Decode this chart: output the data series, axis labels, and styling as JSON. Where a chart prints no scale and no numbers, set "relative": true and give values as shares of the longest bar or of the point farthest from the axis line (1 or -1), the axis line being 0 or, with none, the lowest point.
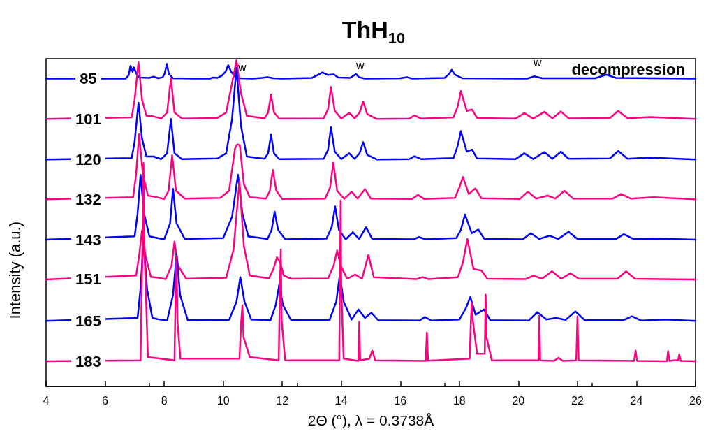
{
  "chart_data": {
    "type": "line",
    "relative": true,
    "title": "ThH$_{10}$",
    "xlabel": "2Θ (°), λ = 0.3738Å",
    "ylabel": "Intensity (a.u.)",
    "annotations": [
      "decompression",
      "w",
      "w",
      "w"
    ],
    "xlim": [
      4,
      26
    ],
    "xticks": [
      4,
      6,
      8,
      10,
      12,
      14,
      16,
      18,
      20,
      22,
      24,
      26
    ],
    "grid": false,
    "legend": false,
    "marker": "none",
    "line_style": "solid",
    "series": [
      {
        "name": "85",
        "color": "#0000ff",
        "x": [
          4,
          6.7,
          6.8,
          6.86,
          6.93,
          6.98,
          7.05,
          7.15,
          7.5,
          7.64,
          7.8,
          7.95,
          8.02,
          8.09,
          8.16,
          8.3,
          9.0,
          9.55,
          9.65,
          9.8,
          9.95,
          10.08,
          10.17,
          10.27,
          10.4,
          10.6,
          11.0,
          11.3,
          11.5,
          11.7,
          12.0,
          13.0,
          13.2,
          13.36,
          13.55,
          13.75,
          13.9,
          14.3,
          14.4,
          14.5,
          14.6,
          14.8,
          16.0,
          16.23,
          16.4,
          17.5,
          17.65,
          17.74,
          17.85,
          18.1,
          20.3,
          20.54,
          20.8,
          22.6,
          22.98,
          23.3,
          26
        ],
        "values": [
          0.944,
          0.944,
          0.955,
          0.983,
          0.965,
          0.978,
          0.96,
          0.947,
          0.946,
          0.95,
          0.945,
          0.948,
          0.96,
          0.989,
          0.958,
          0.945,
          0.944,
          0.944,
          0.947,
          0.946,
          0.953,
          0.965,
          0.985,
          0.965,
          0.95,
          0.945,
          0.944,
          0.946,
          0.948,
          0.945,
          0.944,
          0.946,
          0.955,
          0.963,
          0.955,
          0.957,
          0.947,
          0.946,
          0.952,
          0.958,
          0.948,
          0.944,
          0.945,
          0.948,
          0.944,
          0.946,
          0.958,
          0.971,
          0.956,
          0.945,
          0.944,
          0.951,
          0.945,
          0.945,
          0.956,
          0.946,
          0.944
        ]
      },
      {
        "name": "101",
        "color": "#ff0080",
        "x": [
          4,
          6.9,
          7.0,
          7.13,
          7.25,
          7.4,
          7.64,
          7.9,
          8.1,
          8.23,
          8.35,
          8.6,
          9.8,
          10.1,
          10.3,
          10.45,
          10.6,
          10.8,
          11.4,
          11.52,
          11.62,
          11.72,
          11.9,
          13.4,
          13.55,
          13.65,
          13.78,
          14.0,
          14.27,
          14.45,
          14.62,
          14.74,
          14.88,
          15.2,
          16.3,
          16.48,
          16.7,
          17.8,
          17.95,
          18.05,
          18.25,
          18.43,
          18.6,
          19.9,
          20.2,
          20.5,
          20.88,
          21.15,
          21.44,
          21.7,
          23.1,
          23.38,
          23.7,
          24.44,
          26
        ],
        "values": [
          0.82,
          0.825,
          0.88,
          0.994,
          0.88,
          0.83,
          0.828,
          0.821,
          0.84,
          0.945,
          0.84,
          0.821,
          0.823,
          0.84,
          0.93,
          1.0,
          0.9,
          0.83,
          0.822,
          0.84,
          0.895,
          0.84,
          0.821,
          0.822,
          0.85,
          0.918,
          0.845,
          0.821,
          0.839,
          0.822,
          0.84,
          0.874,
          0.835,
          0.82,
          0.821,
          0.831,
          0.821,
          0.825,
          0.86,
          0.906,
          0.845,
          0.849,
          0.823,
          0.821,
          0.838,
          0.821,
          0.842,
          0.822,
          0.843,
          0.822,
          0.823,
          0.845,
          0.822,
          0.826,
          0.82
        ]
      },
      {
        "name": "120",
        "color": "#0000ff",
        "x": [
          4,
          6.9,
          7.0,
          7.13,
          7.25,
          7.4,
          7.64,
          7.9,
          8.1,
          8.23,
          8.35,
          8.6,
          9.8,
          10.1,
          10.3,
          10.45,
          10.6,
          10.8,
          11.4,
          11.52,
          11.62,
          11.72,
          11.9,
          13.4,
          13.55,
          13.65,
          13.78,
          14.0,
          14.27,
          14.45,
          14.62,
          14.74,
          14.88,
          15.2,
          16.3,
          16.48,
          16.7,
          17.8,
          17.95,
          18.05,
          18.25,
          18.43,
          18.6,
          19.9,
          20.2,
          20.5,
          20.88,
          21.15,
          21.44,
          21.7,
          23.1,
          23.38,
          23.7,
          24.44,
          26
        ],
        "values": [
          0.696,
          0.7,
          0.75,
          0.87,
          0.76,
          0.705,
          0.705,
          0.697,
          0.715,
          0.82,
          0.715,
          0.697,
          0.699,
          0.715,
          0.82,
          0.977,
          0.8,
          0.705,
          0.698,
          0.715,
          0.772,
          0.715,
          0.697,
          0.698,
          0.725,
          0.795,
          0.72,
          0.697,
          0.715,
          0.698,
          0.715,
          0.749,
          0.71,
          0.696,
          0.697,
          0.706,
          0.697,
          0.7,
          0.74,
          0.783,
          0.72,
          0.726,
          0.699,
          0.697,
          0.715,
          0.697,
          0.719,
          0.698,
          0.72,
          0.698,
          0.699,
          0.722,
          0.698,
          0.702,
          0.696
        ]
      },
      {
        "name": "132",
        "color": "#ff0080",
        "x": [
          4,
          6.95,
          7.05,
          7.15,
          7.28,
          7.45,
          7.7,
          8.0,
          8.15,
          8.27,
          8.4,
          8.7,
          9.9,
          10.2,
          10.4,
          10.48,
          10.56,
          10.7,
          10.9,
          11.45,
          11.58,
          11.68,
          11.8,
          12.0,
          13.45,
          13.62,
          13.73,
          13.86,
          14.1,
          14.35,
          14.55,
          14.8,
          15.0,
          16.4,
          16.6,
          16.8,
          17.85,
          18.0,
          18.12,
          18.32,
          18.54,
          18.75,
          20.05,
          20.32,
          20.6,
          20.99,
          21.25,
          21.56,
          21.85,
          23.2,
          23.48,
          23.8,
          24.58,
          26
        ],
        "values": [
          0.574,
          0.58,
          0.65,
          0.773,
          0.65,
          0.585,
          0.581,
          0.575,
          0.6,
          0.709,
          0.6,
          0.576,
          0.578,
          0.6,
          0.73,
          0.742,
          0.74,
          0.62,
          0.58,
          0.576,
          0.6,
          0.664,
          0.6,
          0.575,
          0.576,
          0.61,
          0.686,
          0.6,
          0.575,
          0.597,
          0.576,
          0.605,
          0.576,
          0.575,
          0.587,
          0.575,
          0.578,
          0.61,
          0.642,
          0.59,
          0.607,
          0.577,
          0.575,
          0.597,
          0.576,
          0.585,
          0.576,
          0.6,
          0.576,
          0.576,
          0.59,
          0.576,
          0.58,
          0.574
        ]
      },
      {
        "name": "143",
        "color": "#0000ff",
        "x": [
          4,
          7.0,
          7.1,
          7.2,
          7.32,
          7.5,
          7.72,
          8.0,
          8.2,
          8.3,
          8.42,
          8.7,
          10.0,
          10.3,
          10.5,
          10.65,
          10.85,
          11.5,
          11.64,
          11.74,
          11.86,
          12.1,
          13.5,
          13.68,
          13.79,
          13.92,
          14.15,
          14.39,
          14.6,
          14.84,
          15.05,
          16.45,
          16.63,
          16.85,
          17.9,
          18.05,
          18.19,
          18.42,
          18.64,
          18.85,
          20.15,
          20.42,
          20.7,
          21.06,
          21.35,
          21.7,
          22.0,
          23.3,
          23.57,
          23.9,
          24.72,
          26
        ],
        "values": [
          0.45,
          0.46,
          0.53,
          0.649,
          0.53,
          0.46,
          0.456,
          0.451,
          0.5,
          0.606,
          0.5,
          0.452,
          0.455,
          0.52,
          0.649,
          0.53,
          0.46,
          0.452,
          0.48,
          0.536,
          0.48,
          0.451,
          0.453,
          0.49,
          0.552,
          0.48,
          0.451,
          0.473,
          0.452,
          0.488,
          0.452,
          0.451,
          0.458,
          0.451,
          0.455,
          0.48,
          0.527,
          0.47,
          0.481,
          0.452,
          0.451,
          0.47,
          0.452,
          0.462,
          0.452,
          0.474,
          0.452,
          0.452,
          0.467,
          0.452,
          0.453,
          0.45
        ]
      },
      {
        "name": "151",
        "color": "#ff0080",
        "x": [
          4,
          7.05,
          7.15,
          7.25,
          7.37,
          7.55,
          7.75,
          8.05,
          8.25,
          8.35,
          8.47,
          8.75,
          10.1,
          10.35,
          10.55,
          10.7,
          10.9,
          11.55,
          11.7,
          11.82,
          11.93,
          12.05,
          12.3,
          13.55,
          13.74,
          13.86,
          13.98,
          14.2,
          14.47,
          14.7,
          14.92,
          15.1,
          16.55,
          16.75,
          16.95,
          17.95,
          18.12,
          18.27,
          18.48,
          18.75,
          18.95,
          20.25,
          20.51,
          20.8,
          21.14,
          21.45,
          21.76,
          22.05,
          23.35,
          23.65,
          23.95,
          24.8,
          26
        ],
        "values": [
          0.328,
          0.34,
          0.4,
          0.478,
          0.4,
          0.336,
          0.334,
          0.329,
          0.37,
          0.444,
          0.37,
          0.33,
          0.333,
          0.42,
          0.63,
          0.43,
          0.34,
          0.331,
          0.36,
          0.396,
          0.38,
          0.34,
          0.33,
          0.331,
          0.37,
          0.417,
          0.37,
          0.33,
          0.343,
          0.33,
          0.403,
          0.335,
          0.329,
          0.335,
          0.329,
          0.335,
          0.38,
          0.452,
          0.36,
          0.355,
          0.33,
          0.329,
          0.34,
          0.33,
          0.353,
          0.33,
          0.347,
          0.33,
          0.33,
          0.353,
          0.33,
          0.329,
          0.328
        ]
      },
      {
        "name": "165",
        "color": "#0000ff",
        "x": [
          4,
          7.1,
          7.2,
          7.3,
          7.42,
          7.6,
          7.8,
          8.1,
          8.3,
          8.42,
          8.54,
          8.8,
          10.2,
          10.45,
          10.58,
          10.72,
          10.95,
          11.6,
          11.78,
          11.9,
          12.02,
          12.3,
          13.6,
          13.83,
          13.95,
          14.08,
          14.35,
          14.58,
          14.8,
          15.02,
          15.25,
          16.65,
          16.83,
          17.05,
          18.0,
          18.22,
          18.37,
          18.55,
          18.83,
          19.05,
          20.35,
          20.64,
          20.95,
          21.27,
          21.6,
          21.93,
          22.25,
          23.55,
          23.85,
          24.15,
          24.99,
          26
        ],
        "values": [
          0.201,
          0.21,
          0.3,
          0.445,
          0.3,
          0.21,
          0.206,
          0.202,
          0.28,
          0.406,
          0.28,
          0.203,
          0.204,
          0.26,
          0.335,
          0.26,
          0.205,
          0.203,
          0.25,
          0.313,
          0.25,
          0.203,
          0.203,
          0.26,
          0.342,
          0.26,
          0.205,
          0.236,
          0.21,
          0.226,
          0.203,
          0.202,
          0.213,
          0.202,
          0.205,
          0.24,
          0.274,
          0.22,
          0.236,
          0.203,
          0.202,
          0.228,
          0.205,
          0.21,
          0.204,
          0.23,
          0.203,
          0.203,
          0.215,
          0.202,
          0.205,
          0.201
        ]
      },
      {
        "name": "183",
        "color": "#ff0080",
        "x": [
          4,
          7.2,
          7.26,
          7.3,
          7.34,
          7.45,
          7.88,
          8.35,
          8.39,
          8.42,
          8.45,
          8.55,
          10.55,
          10.61,
          10.65,
          10.69,
          10.9,
          11.88,
          11.92,
          11.95,
          11.98,
          12.1,
          13.93,
          13.96,
          13.98,
          14.0,
          14.08,
          14.58,
          14.61,
          14.64,
          14.95,
          15.05,
          15.15,
          16.86,
          16.9,
          16.94,
          18.35,
          18.39,
          18.42,
          18.46,
          18.6,
          18.86,
          18.89,
          18.92,
          19.1,
          20.68,
          20.71,
          20.74,
          21.2,
          21.36,
          21.5,
          21.96,
          22.0,
          22.04,
          23.92,
          23.97,
          24.02,
          25.03,
          25.07,
          25.12,
          25.25,
          25.41,
          25.45,
          25.5,
          26
        ],
        "values": [
          0.077,
          0.08,
          0.4,
          0.685,
          0.4,
          0.09,
          0.085,
          0.08,
          0.3,
          0.4,
          0.2,
          0.085,
          0.085,
          0.2,
          0.249,
          0.15,
          0.09,
          0.08,
          0.3,
          0.42,
          0.2,
          0.08,
          0.08,
          0.4,
          0.57,
          0.3,
          0.085,
          0.078,
          0.198,
          0.08,
          0.085,
          0.11,
          0.08,
          0.078,
          0.165,
          0.079,
          0.085,
          0.2,
          0.256,
          0.2,
          0.1,
          0.1,
          0.281,
          0.15,
          0.08,
          0.08,
          0.217,
          0.08,
          0.078,
          0.088,
          0.078,
          0.08,
          0.215,
          0.08,
          0.078,
          0.11,
          0.078,
          0.077,
          0.108,
          0.078,
          0.08,
          0.08,
          0.098,
          0.078,
          0.077
        ]
      }
    ]
  }
}
